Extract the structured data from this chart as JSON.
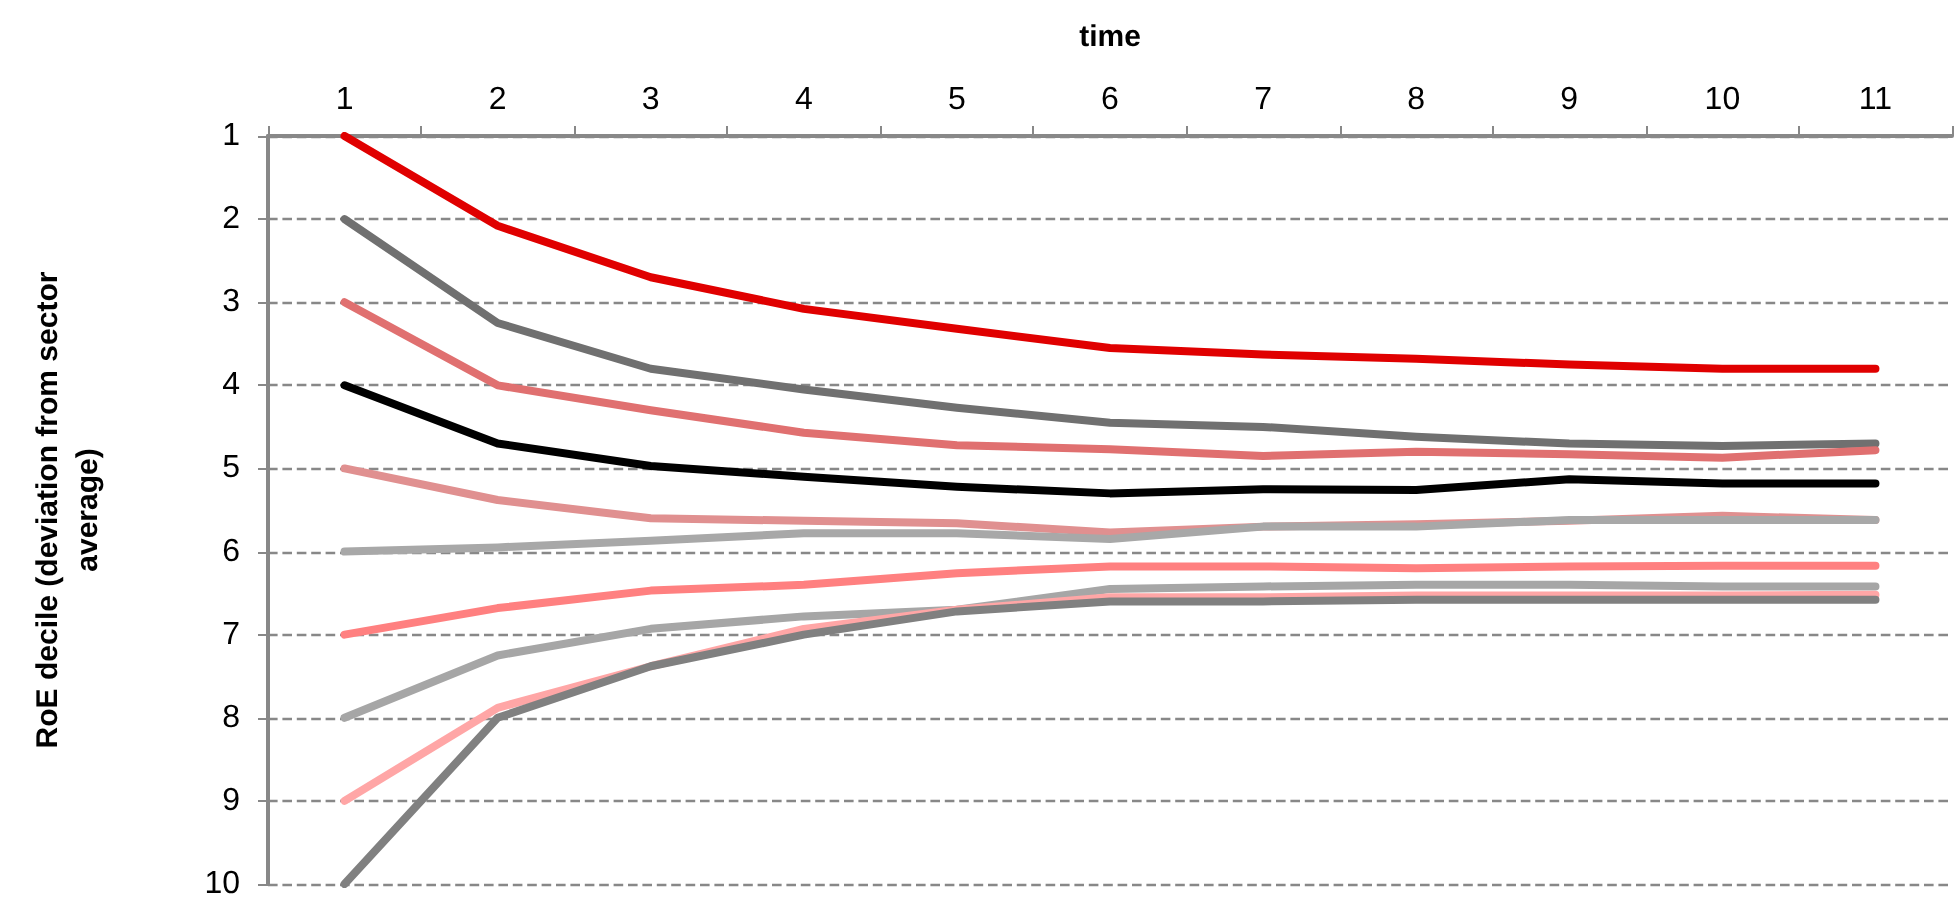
{
  "chart_data": {
    "type": "line",
    "xlabel": "time",
    "ylabel": "RoE decile (deviation from sector\naverage)",
    "categories": [
      "1",
      "2",
      "3",
      "4",
      "5",
      "6",
      "7",
      "8",
      "9",
      "10",
      "11"
    ],
    "ylim": [
      10,
      1
    ],
    "yticks": [
      1,
      2,
      3,
      4,
      5,
      6,
      7,
      8,
      9,
      10
    ],
    "grid": "y",
    "marker": "none",
    "line_style": "solid",
    "series": [
      {
        "color": "#e00000",
        "values": [
          1,
          2.08,
          2.7,
          3.08,
          3.32,
          3.55,
          3.63,
          3.68,
          3.75,
          3.8,
          3.8
        ]
      },
      {
        "color": "#707070",
        "values": [
          2,
          3.25,
          3.8,
          4.05,
          4.27,
          4.45,
          4.5,
          4.62,
          4.7,
          4.73,
          4.7
        ]
      },
      {
        "color": "#e07070",
        "values": [
          3,
          4,
          4.3,
          4.57,
          4.72,
          4.77,
          4.85,
          4.8,
          4.83,
          4.87,
          4.78
        ]
      },
      {
        "color": "#000000",
        "values": [
          4,
          4.7,
          4.97,
          5.1,
          5.22,
          5.3,
          5.25,
          5.26,
          5.13,
          5.18,
          5.18
        ]
      },
      {
        "color": "#e09090",
        "values": [
          5,
          5.38,
          5.6,
          5.63,
          5.66,
          5.77,
          5.7,
          5.67,
          5.63,
          5.57,
          5.62
        ]
      },
      {
        "color": "#a8a8a8",
        "values": [
          6,
          5.95,
          5.87,
          5.78,
          5.78,
          5.85,
          5.7,
          5.7,
          5.62,
          5.62,
          5.62
        ]
      },
      {
        "color": "#ff8080",
        "values": [
          7,
          6.68,
          6.47,
          6.4,
          6.26,
          6.18,
          6.18,
          6.2,
          6.18,
          6.17,
          6.17
        ]
      },
      {
        "color": "#a6a6a6",
        "values": [
          8,
          7.25,
          6.93,
          6.78,
          6.7,
          6.45,
          6.42,
          6.4,
          6.4,
          6.42,
          6.42
        ]
      },
      {
        "color": "#ffa6a6",
        "values": [
          9,
          7.88,
          7.38,
          6.93,
          6.7,
          6.55,
          6.55,
          6.53,
          6.53,
          6.53,
          6.52
        ]
      },
      {
        "color": "#808080",
        "values": [
          10,
          8,
          7.38,
          7,
          6.72,
          6.6,
          6.6,
          6.58,
          6.58,
          6.58,
          6.58
        ]
      }
    ]
  }
}
